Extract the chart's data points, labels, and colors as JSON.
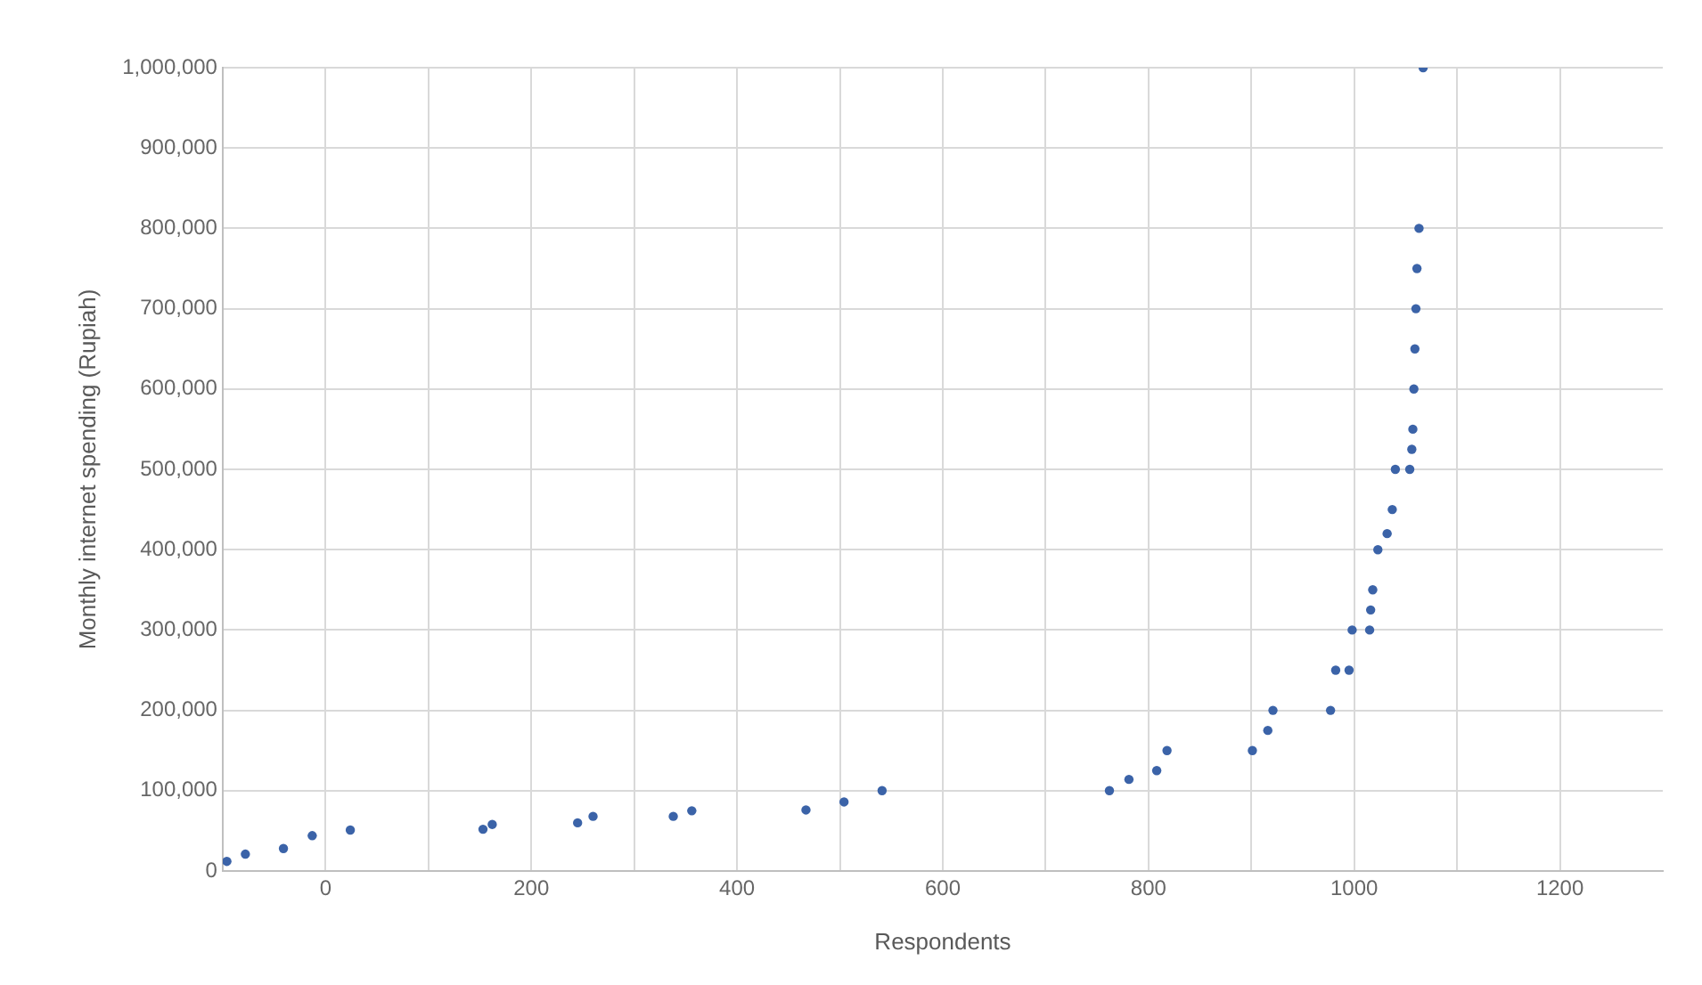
{
  "chart_data": {
    "type": "scatter",
    "xlabel": "Respondents",
    "ylabel": "Monthly internet spending (Rupiah)",
    "x": [
      -96,
      -78,
      -41,
      -13,
      24,
      153,
      162,
      245,
      260,
      338,
      356,
      467,
      504,
      541,
      762,
      781,
      808,
      818,
      901,
      916,
      921,
      977,
      982,
      995,
      998,
      1015,
      1016,
      1018,
      1023,
      1032,
      1037,
      1040,
      1054,
      1056,
      1057,
      1058,
      1059,
      1060,
      1061,
      1063,
      1067
    ],
    "series": [
      {
        "color": "#3b63a8",
        "values": [
          12000,
          21000,
          28000,
          44000,
          51000,
          52000,
          58000,
          60000,
          68000,
          68000,
          75000,
          76000,
          86000,
          100000,
          100000,
          114000,
          125000,
          150000,
          150000,
          175000,
          200000,
          200000,
          250000,
          250000,
          300000,
          300000,
          325000,
          350000,
          400000,
          420000,
          450000,
          500000,
          500000,
          525000,
          550000,
          600000,
          650000,
          700000,
          750000,
          800000,
          1000000
        ]
      }
    ],
    "xlim": [
      -100,
      1300
    ],
    "xticks": [
      0,
      {
        "value": 100,
        "label": null
      },
      200,
      {
        "value": 300,
        "label": null
      },
      400,
      {
        "value": 500,
        "label": null
      },
      600,
      {
        "value": 700,
        "label": null
      },
      800,
      {
        "value": 900,
        "label": null
      },
      1000,
      {
        "value": 1100,
        "label": null
      },
      1200
    ],
    "ylim": [
      0,
      1000000
    ],
    "yticks": [
      {
        "value": 0,
        "label": "0"
      },
      {
        "value": 100000,
        "label": "100,000"
      },
      {
        "value": 200000,
        "label": "200,000"
      },
      {
        "value": 300000,
        "label": "300,000"
      },
      {
        "value": 400000,
        "label": "400,000"
      },
      {
        "value": 500000,
        "label": "500,000"
      },
      {
        "value": 600000,
        "label": "600,000"
      },
      {
        "value": 700000,
        "label": "700,000"
      },
      {
        "value": 800000,
        "label": "800,000"
      },
      {
        "value": 900000,
        "label": "900,000"
      },
      {
        "value": 1000000,
        "label": "1,000,000"
      }
    ],
    "grid": true,
    "marker": "circle",
    "legend": false
  }
}
